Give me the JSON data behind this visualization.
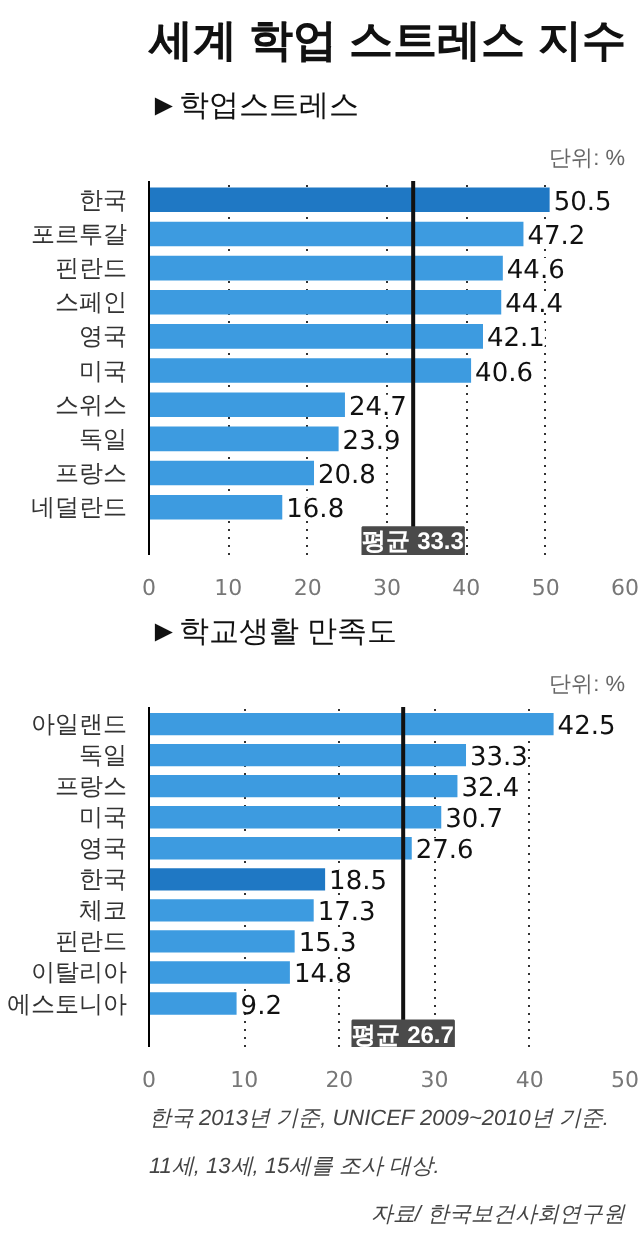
{
  "chart_data": [
    {
      "type": "bar",
      "orientation": "horizontal",
      "title": "세계 학업 스트레스 지수",
      "subtitle": "►학업스트레스",
      "categories": [
        "한국",
        "포르투갈",
        "핀란드",
        "스페인",
        "영국",
        "미국",
        "스위스",
        "독일",
        "프랑스",
        "네덜란드"
      ],
      "values": [
        50.5,
        47.2,
        44.6,
        44.4,
        42.1,
        40.6,
        24.7,
        23.9,
        20.8,
        16.8
      ],
      "colors": [
        "#1f78c4",
        "#3d9be0",
        "#3d9be0",
        "#3d9be0",
        "#3d9be0",
        "#3d9be0",
        "#3d9be0",
        "#3d9be0",
        "#3d9be0",
        "#3d9be0"
      ],
      "xlim": [
        0,
        60
      ],
      "xticks": [
        0,
        10,
        20,
        30,
        40,
        50,
        60
      ],
      "grid": "x",
      "data_labels": true,
      "ref_lines": [
        {
          "axis": "x",
          "value": 33.3,
          "label": "평균 33.3",
          "color": "#111111"
        }
      ],
      "annotations": [
        "단위: %"
      ]
    },
    {
      "type": "bar",
      "orientation": "horizontal",
      "title": "►학교생활 만족도",
      "categories": [
        "아일랜드",
        "독일",
        "프랑스",
        "미국",
        "영국",
        "한국",
        "체코",
        "핀란드",
        "이탈리아",
        "에스토니아"
      ],
      "values": [
        42.5,
        33.3,
        32.4,
        30.7,
        27.6,
        18.5,
        17.3,
        15.3,
        14.8,
        9.2
      ],
      "colors": [
        "#3d9be0",
        "#3d9be0",
        "#3d9be0",
        "#3d9be0",
        "#3d9be0",
        "#1f78c4",
        "#3d9be0",
        "#3d9be0",
        "#3d9be0",
        "#3d9be0"
      ],
      "xlim": [
        0,
        50
      ],
      "xticks": [
        0,
        10,
        20,
        30,
        40,
        50
      ],
      "grid": "x",
      "data_labels": true,
      "ref_lines": [
        {
          "axis": "x",
          "value": 26.7,
          "label": "평균 26.7",
          "color": "#111111"
        }
      ],
      "annotations": [
        "단위: %",
        "한국 2013년 기준, UNICEF 2009~2010년 기준.",
        "11세, 13세, 15세를 조사 대상.",
        "자료/ 한국보건사회연구원"
      ]
    }
  ]
}
